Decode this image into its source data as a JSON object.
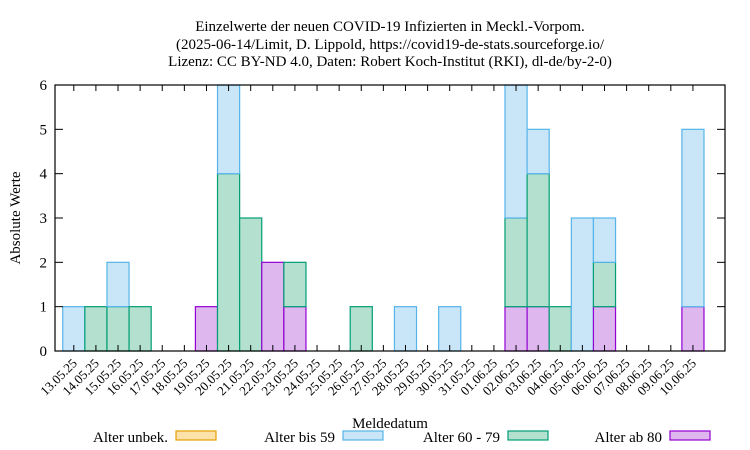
{
  "chart_data": {
    "type": "bar",
    "stacked": true,
    "title_lines": [
      "Einzelwerte der neuen COVID-19 Infizierten in Meckl.-Vorpom.",
      "(2025-06-14/Limit, D. Lippold, https://covid19-de-stats.sourceforge.io/",
      "Lizenz: CC BY-ND 4.0, Daten: Robert Koch-Institut (RKI), dl-de/by-2-0)"
    ],
    "xlabel": "Meldedatum",
    "ylabel": "Absolute Werte",
    "ylim": [
      0,
      6
    ],
    "yticks": [
      0,
      1,
      2,
      3,
      4,
      5,
      6
    ],
    "grid": false,
    "legend_position": "bottom",
    "categories": [
      "13.05.25",
      "14.05.25",
      "15.05.25",
      "16.05.25",
      "17.05.25",
      "18.05.25",
      "19.05.25",
      "20.05.25",
      "21.05.25",
      "22.05.25",
      "23.05.25",
      "24.05.25",
      "25.05.25",
      "26.05.25",
      "27.05.25",
      "28.05.25",
      "29.05.25",
      "30.05.25",
      "31.05.25",
      "01.06.25",
      "02.06.25",
      "03.06.25",
      "04.06.25",
      "05.06.25",
      "06.06.25",
      "07.06.25",
      "08.06.25",
      "09.06.25",
      "10.06.25"
    ],
    "series": [
      {
        "name": "Alter ab 80",
        "fill": "#ddb7ee",
        "stroke": "#9400d3",
        "values": [
          0,
          0,
          0,
          0,
          0,
          0,
          1,
          0,
          0,
          2,
          1,
          0,
          0,
          0,
          0,
          0,
          0,
          0,
          0,
          0,
          1,
          1,
          0,
          0,
          1,
          0,
          0,
          0,
          1
        ]
      },
      {
        "name": "Alter 60 - 79",
        "fill": "#b3e0cf",
        "stroke": "#009e73",
        "values": [
          0,
          1,
          1,
          1,
          0,
          0,
          0,
          4,
          3,
          0,
          1,
          0,
          0,
          1,
          0,
          0,
          0,
          0,
          0,
          0,
          2,
          3,
          1,
          0,
          1,
          0,
          0,
          0,
          0
        ]
      },
      {
        "name": "Alter bis 59",
        "fill": "#c9e6f8",
        "stroke": "#56b4e9",
        "values": [
          1,
          0,
          1,
          0,
          0,
          0,
          0,
          2,
          0,
          0,
          0,
          0,
          0,
          0,
          0,
          1,
          0,
          1,
          0,
          0,
          3,
          1,
          0,
          3,
          1,
          0,
          0,
          0,
          4
        ]
      },
      {
        "name": "Alter unbek.",
        "fill": "#fbe2a8",
        "stroke": "#e69f00",
        "values": [
          0,
          0,
          0,
          0,
          0,
          0,
          0,
          0,
          0,
          0,
          0,
          0,
          0,
          0,
          0,
          0,
          0,
          0,
          0,
          0,
          0,
          0,
          0,
          0,
          0,
          0,
          0,
          0,
          0
        ]
      }
    ],
    "legend_order": [
      "Alter unbek.",
      "Alter bis 59",
      "Alter 60 - 79",
      "Alter ab 80"
    ]
  }
}
